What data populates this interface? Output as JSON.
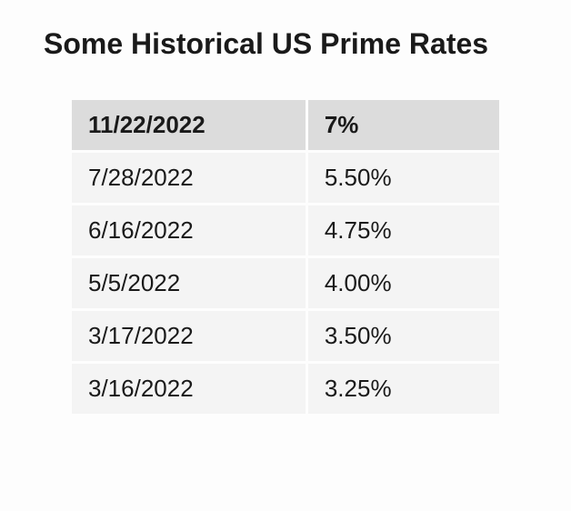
{
  "title": "Some Historical US Prime Rates",
  "table": {
    "type": "table",
    "header_bg": "#dcdcdc",
    "row_bg": "#f4f4f4",
    "cell_spacing": 3,
    "title_fontsize": 32,
    "cell_fontsize": 26,
    "text_color": "#1a1a1a",
    "columns": [
      "date",
      "rate"
    ],
    "header": {
      "date": "11/22/2022",
      "rate": "7%"
    },
    "rows": [
      {
        "date": "7/28/2022",
        "rate": "5.50%"
      },
      {
        "date": "6/16/2022",
        "rate": "4.75%"
      },
      {
        "date": "5/5/2022",
        "rate": "4.00%"
      },
      {
        "date": "3/17/2022",
        "rate": "3.50%"
      },
      {
        "date": "3/16/2022",
        "rate": "3.25%"
      }
    ]
  }
}
